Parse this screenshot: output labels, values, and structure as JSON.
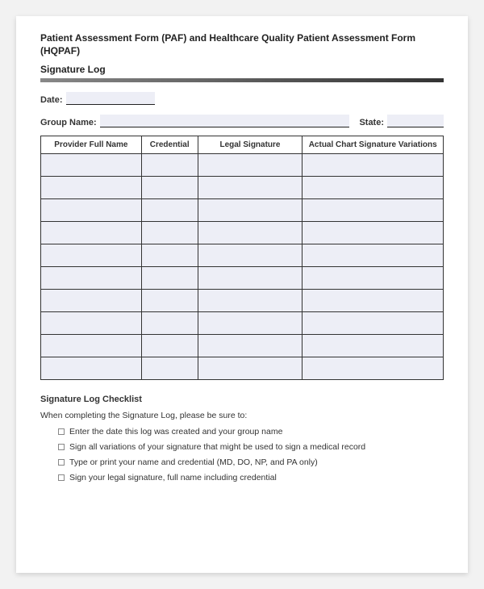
{
  "header": {
    "title": "Patient Assessment Form (PAF) and Healthcare Quality Patient Assessment Form (HQPAF)",
    "subtitle": "Signature Log"
  },
  "fields": {
    "date_label": "Date:",
    "group_label": "Group Name:",
    "state_label": "State:"
  },
  "table": {
    "columns": [
      "Provider Full Name",
      "Credential",
      "Legal Signature",
      "Actual Chart Signature Variations"
    ],
    "row_count": 10,
    "header_bg": "#ffffff",
    "cell_bg": "#edeef6",
    "border_color": "#333333"
  },
  "checklist": {
    "title": "Signature Log Checklist",
    "intro": "When completing the Signature Log, please be sure to:",
    "items": [
      "Enter the date this log was created and your group name",
      "Sign all variations of your signature that might be used to sign a medical record",
      "Type or print your name and credential (MD, DO, NP, and PA only)",
      "Sign your legal signature, full name including credential"
    ]
  },
  "colors": {
    "page_bg": "#ffffff",
    "outer_bg": "#f2f2f2",
    "field_fill": "#edeef6",
    "text": "#333333"
  }
}
